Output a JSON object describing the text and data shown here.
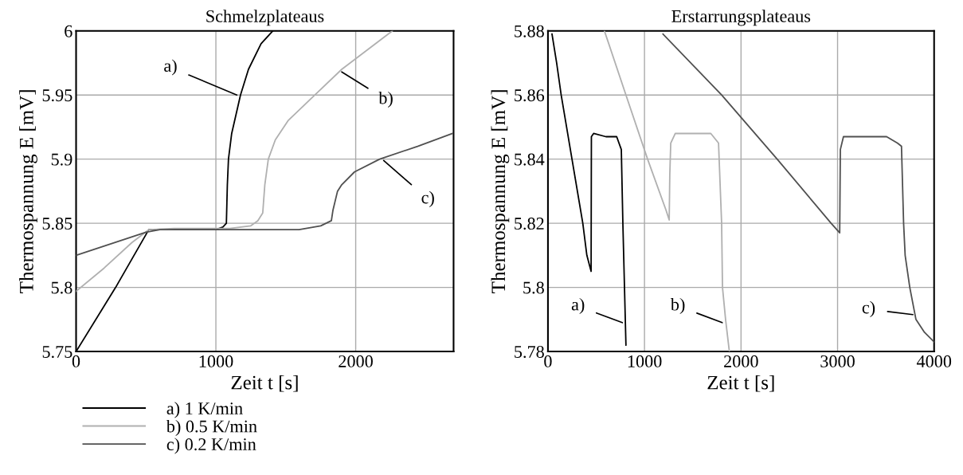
{
  "chart_data": [
    {
      "type": "line",
      "title": "Schmelzplateaus",
      "xlabel": "Zeit t [s]",
      "ylabel": "Thermospannung E [mV]",
      "xlim": [
        0,
        2700
      ],
      "xticks": [
        0,
        1000,
        2000
      ],
      "ylim": [
        5.75,
        6
      ],
      "yticks": [
        5.75,
        5.8,
        5.85,
        5.9,
        5.95,
        6
      ],
      "grid": true,
      "legend": "bottom left",
      "series": [
        {
          "name": "a) 1 K/min",
          "color": "#000000",
          "x": [
            0,
            283,
            520,
            600,
            1000,
            1050,
            1075,
            1082,
            1090,
            1113,
            1176,
            1233,
            1323,
            1407
          ],
          "values": [
            5.75,
            5.8,
            5.845,
            5.845,
            5.845,
            5.847,
            5.85,
            5.88,
            5.9,
            5.92,
            5.95,
            5.97,
            5.99,
            6.0
          ]
        },
        {
          "name": "b) 0.5 K/min",
          "color": "#b0b0b0",
          "x": [
            0,
            200,
            400,
            520,
            700,
            1100,
            1250,
            1300,
            1335,
            1350,
            1375,
            1425,
            1516,
            1708,
            1900,
            2262
          ],
          "values": [
            5.797,
            5.815,
            5.835,
            5.845,
            5.846,
            5.846,
            5.848,
            5.852,
            5.858,
            5.88,
            5.9,
            5.915,
            5.93,
            5.95,
            5.97,
            6.0
          ]
        },
        {
          "name": "c) 0.2 K/min",
          "color": "#505050",
          "x": [
            0,
            250,
            500,
            600,
            1000,
            1595,
            1750,
            1826,
            1837,
            1870,
            1900,
            1991,
            2172,
            2443,
            2692
          ],
          "values": [
            5.825,
            5.834,
            5.843,
            5.845,
            5.845,
            5.845,
            5.848,
            5.852,
            5.86,
            5.875,
            5.88,
            5.89,
            5.9,
            5.91,
            5.92
          ]
        }
      ],
      "annotations": [
        {
          "text": "a)",
          "x": 1150,
          "y": 5.95
        },
        {
          "text": "b)",
          "x": 1900,
          "y": 5.968
        },
        {
          "text": "c)",
          "x": 2200,
          "y": 5.899
        }
      ]
    },
    {
      "type": "line",
      "title": "Erstarrungsplateaus",
      "xlabel": "Zeit t [s]",
      "ylabel": "Thermospannung E [mV]",
      "xlim": [
        0,
        4000
      ],
      "xticks": [
        0,
        1000,
        2000,
        3000,
        4000
      ],
      "ylim": [
        5.78,
        5.88
      ],
      "yticks": [
        5.78,
        5.8,
        5.82,
        5.84,
        5.86,
        5.88
      ],
      "grid": true,
      "series": [
        {
          "color": "#000000",
          "x": [
            42,
            90,
            137,
            249,
            361,
            403,
            447,
            450,
            473,
            600,
            712,
            760,
            776,
            808
          ],
          "values": [
            5.879,
            5.87,
            5.86,
            5.84,
            5.82,
            5.81,
            5.805,
            5.847,
            5.848,
            5.847,
            5.847,
            5.843,
            5.82,
            5.782
          ]
        },
        {
          "color": "#b0b0b0",
          "x": [
            585,
            808,
            1032,
            1224,
            1256,
            1262,
            1272,
            1319,
            1500,
            1687,
            1767,
            1799,
            1808,
            1840,
            1879
          ],
          "values": [
            5.88,
            5.86,
            5.84,
            5.824,
            5.821,
            5.835,
            5.845,
            5.848,
            5.848,
            5.848,
            5.845,
            5.82,
            5.8,
            5.79,
            5.78
          ]
        },
        {
          "color": "#505050",
          "x": [
            1192,
            1799,
            2374,
            2933,
            3022,
            3029,
            3061,
            3300,
            3508,
            3620,
            3662,
            3684,
            3700,
            3748,
            3812,
            3900,
            4000
          ],
          "values": [
            5.879,
            5.86,
            5.84,
            5.82,
            5.817,
            5.843,
            5.847,
            5.847,
            5.847,
            5.845,
            5.844,
            5.82,
            5.81,
            5.8,
            5.79,
            5.786,
            5.783
          ]
        }
      ],
      "annotations": [
        {
          "text": "a)",
          "x": 770,
          "y": 5.789
        },
        {
          "text": "b)",
          "x": 1805,
          "y": 5.789
        },
        {
          "text": "c)",
          "x": 3780,
          "y": 5.7915
        }
      ]
    }
  ]
}
